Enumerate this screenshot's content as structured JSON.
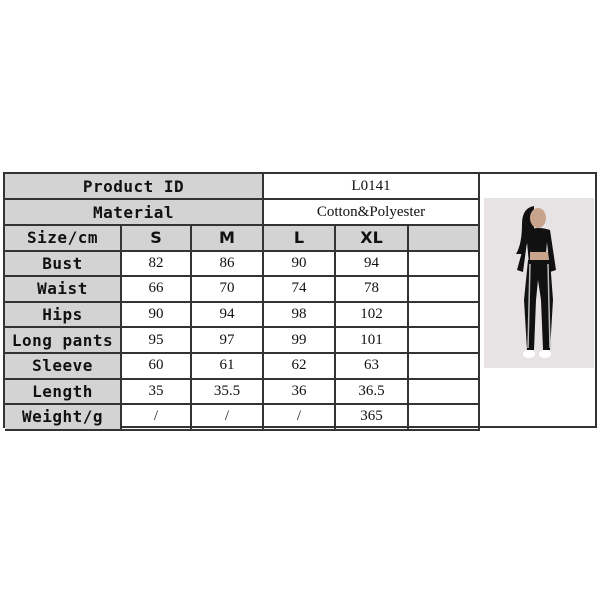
{
  "product_id": {
    "label": "Product ID",
    "value": "L0141"
  },
  "material": {
    "label": "Material",
    "value": "Cotton&Polyester"
  },
  "size_header": {
    "label": "Size/cm",
    "sizes": [
      "S",
      "M",
      "L",
      "XL",
      ""
    ]
  },
  "rows": [
    {
      "label": "Bust",
      "values": [
        "82",
        "86",
        "90",
        "94",
        ""
      ]
    },
    {
      "label": "Waist",
      "values": [
        "66",
        "70",
        "74",
        "78",
        ""
      ]
    },
    {
      "label": "Hips",
      "values": [
        "90",
        "94",
        "98",
        "102",
        ""
      ]
    },
    {
      "label": "Long pants",
      "values": [
        "95",
        "97",
        "99",
        "101",
        ""
      ]
    },
    {
      "label": "Sleeve",
      "values": [
        "60",
        "61",
        "62",
        "63",
        ""
      ]
    },
    {
      "label": "Length",
      "values": [
        "35",
        "35.5",
        "36",
        "36.5",
        ""
      ]
    },
    {
      "label": "Weight/g",
      "values": [
        "/",
        "/",
        "/",
        "365",
        ""
      ]
    }
  ],
  "colors": {
    "header_gray": "#d3d3d3",
    "border": "#333333"
  }
}
